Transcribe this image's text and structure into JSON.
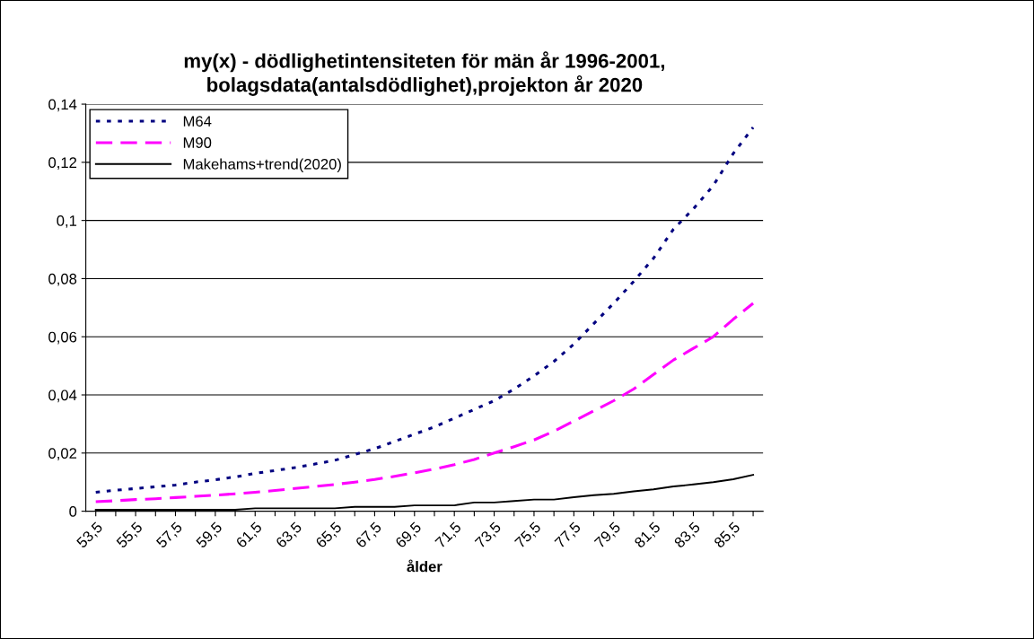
{
  "chart_data": {
    "type": "line",
    "title": "my(x) - dödlighetintensiteten för män år 1996-2001,\nbolagsdata(antalsdödlighet),projekton år 2020",
    "xlabel": "ålder",
    "categories": [
      "53,5",
      null,
      "55,5",
      null,
      "57,5",
      null,
      "59,5",
      null,
      "61,5",
      null,
      "63,5",
      null,
      "65,5",
      null,
      "67,5",
      null,
      "69,5",
      null,
      "71,5",
      null,
      "73,5",
      null,
      "75,5",
      null,
      "77,5",
      null,
      "79,5",
      null,
      "81,5",
      null,
      "83,5",
      null,
      "85,5",
      null
    ],
    "series": [
      {
        "name": "M64",
        "color": "#000080",
        "line_style": "dotted",
        "values": [
          0.0065,
          0.0072,
          0.0078,
          0.0084,
          0.009,
          0.01,
          0.0108,
          0.0118,
          0.013,
          0.014,
          0.015,
          0.0162,
          0.0175,
          0.0195,
          0.0215,
          0.024,
          0.0265,
          0.029,
          0.032,
          0.035,
          0.038,
          0.042,
          0.0465,
          0.0515,
          0.0575,
          0.0645,
          0.0715,
          0.079,
          0.087,
          0.097,
          0.104,
          0.112,
          0.123,
          0.132
        ]
      },
      {
        "name": "M90",
        "color": "#ff00ff",
        "line_style": "dashed",
        "values": [
          0.0033,
          0.0036,
          0.004,
          0.0043,
          0.0047,
          0.0051,
          0.0055,
          0.006,
          0.0065,
          0.0071,
          0.0078,
          0.0085,
          0.0092,
          0.01,
          0.0109,
          0.012,
          0.0132,
          0.0145,
          0.016,
          0.0178,
          0.02,
          0.0222,
          0.0245,
          0.0275,
          0.031,
          0.0345,
          0.038,
          0.042,
          0.047,
          0.052,
          0.056,
          0.06,
          0.066,
          0.0715
        ]
      },
      {
        "name": "Makehams+trend(2020)",
        "color": "#000000",
        "line_style": "solid",
        "values": [
          0.0005,
          0.0005,
          0.0005,
          0.0005,
          0.0005,
          0.0005,
          0.0005,
          0.0005,
          0.001,
          0.001,
          0.001,
          0.001,
          0.001,
          0.0015,
          0.0015,
          0.0015,
          0.002,
          0.002,
          0.002,
          0.003,
          0.003,
          0.0035,
          0.004,
          0.004,
          0.0048,
          0.0055,
          0.006,
          0.0068,
          0.0075,
          0.0085,
          0.0092,
          0.01,
          0.011,
          0.0125
        ]
      }
    ],
    "ylim": [
      0,
      0.14
    ],
    "yticks": [
      0,
      {
        "value": 0.02,
        "label": "0,02"
      },
      {
        "value": 0.04,
        "label": "0,04"
      },
      {
        "value": 0.06,
        "label": "0,06"
      },
      {
        "value": 0.08,
        "label": "0,08"
      },
      {
        "value": 0.1,
        "label": "0,1"
      },
      {
        "value": 0.12,
        "label": "0,12"
      },
      {
        "value": 0.14,
        "label": "0,14"
      }
    ],
    "grid": "y",
    "legend": "top left"
  }
}
